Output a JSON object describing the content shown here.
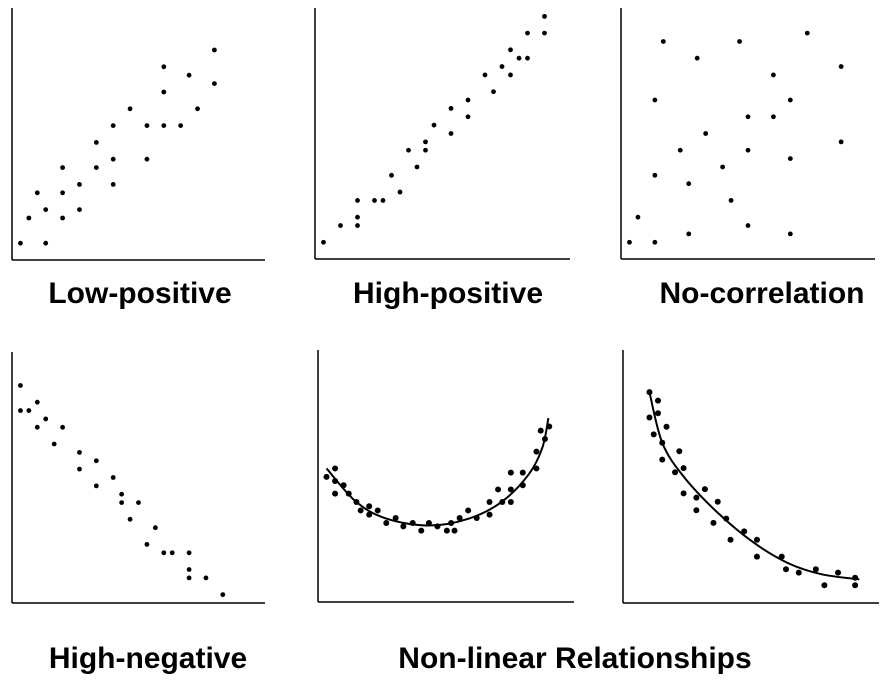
{
  "chart_data": [
    {
      "type": "scatter",
      "title": "Low-positive",
      "xlim": [
        0,
        30
      ],
      "ylim": [
        0,
        30
      ],
      "grid": false,
      "points": [
        [
          1,
          2
        ],
        [
          4,
          2
        ],
        [
          2,
          5
        ],
        [
          4,
          6
        ],
        [
          3,
          8
        ],
        [
          6,
          5
        ],
        [
          6,
          8
        ],
        [
          6,
          11
        ],
        [
          8,
          6
        ],
        [
          8,
          9
        ],
        [
          10,
          11
        ],
        [
          10,
          14
        ],
        [
          12,
          9
        ],
        [
          12,
          12
        ],
        [
          12,
          16
        ],
        [
          14,
          18
        ],
        [
          16,
          12
        ],
        [
          16,
          16
        ],
        [
          18,
          16
        ],
        [
          18,
          20
        ],
        [
          18,
          23
        ],
        [
          20,
          16
        ],
        [
          21,
          22
        ],
        [
          22,
          18
        ],
        [
          24,
          21
        ],
        [
          24,
          25
        ]
      ]
    },
    {
      "type": "scatter",
      "title": "High-positive",
      "xlim": [
        0,
        30
      ],
      "ylim": [
        0,
        30
      ],
      "grid": false,
      "points": [
        [
          1,
          2
        ],
        [
          3,
          4
        ],
        [
          5,
          4
        ],
        [
          5,
          5
        ],
        [
          5,
          7
        ],
        [
          7,
          7
        ],
        [
          8,
          7
        ],
        [
          10,
          8
        ],
        [
          9,
          10
        ],
        [
          11,
          13
        ],
        [
          12,
          11
        ],
        [
          13,
          13
        ],
        [
          13,
          14
        ],
        [
          14,
          16
        ],
        [
          16,
          15
        ],
        [
          16,
          18
        ],
        [
          18,
          17
        ],
        [
          18,
          19
        ],
        [
          20,
          22
        ],
        [
          21,
          20
        ],
        [
          22,
          23
        ],
        [
          23,
          22
        ],
        [
          23,
          25
        ],
        [
          24,
          24
        ],
        [
          25,
          24
        ],
        [
          25,
          27
        ],
        [
          27,
          27
        ],
        [
          27,
          29
        ]
      ]
    },
    {
      "type": "scatter",
      "title": "No-correlation",
      "xlim": [
        0,
        30
      ],
      "ylim": [
        0,
        30
      ],
      "grid": false,
      "points": [
        [
          1,
          2
        ],
        [
          4,
          2
        ],
        [
          2,
          5
        ],
        [
          8,
          3
        ],
        [
          15,
          4
        ],
        [
          20,
          3
        ],
        [
          13,
          7
        ],
        [
          8,
          9
        ],
        [
          4,
          10
        ],
        [
          12,
          11
        ],
        [
          7,
          13
        ],
        [
          15,
          13
        ],
        [
          20,
          12
        ],
        [
          26,
          14
        ],
        [
          10,
          15
        ],
        [
          15,
          17
        ],
        [
          18,
          17
        ],
        [
          4,
          19
        ],
        [
          20,
          19
        ],
        [
          18,
          22
        ],
        [
          26,
          23
        ],
        [
          9,
          24
        ],
        [
          5,
          26
        ],
        [
          14,
          26
        ],
        [
          22,
          27
        ]
      ]
    },
    {
      "type": "scatter",
      "title": "High-negative",
      "xlim": [
        0,
        30
      ],
      "ylim": [
        0,
        30
      ],
      "grid": false,
      "points": [
        [
          1,
          26
        ],
        [
          1,
          23
        ],
        [
          2,
          23
        ],
        [
          3,
          24
        ],
        [
          4,
          22
        ],
        [
          3,
          21
        ],
        [
          6,
          21
        ],
        [
          5,
          19
        ],
        [
          8,
          18
        ],
        [
          8,
          16
        ],
        [
          10,
          17
        ],
        [
          10,
          14
        ],
        [
          12,
          15
        ],
        [
          13,
          13
        ],
        [
          13,
          12
        ],
        [
          15,
          12
        ],
        [
          14,
          10
        ],
        [
          17,
          9
        ],
        [
          16,
          7
        ],
        [
          18,
          6
        ],
        [
          19,
          6
        ],
        [
          21,
          6
        ],
        [
          21,
          4
        ],
        [
          21,
          3
        ],
        [
          23,
          3
        ],
        [
          25,
          1
        ]
      ]
    },
    {
      "type": "scatter",
      "title": "",
      "xlim": [
        0,
        30
      ],
      "ylim": [
        0,
        30
      ],
      "grid": false,
      "points": [
        [
          1,
          14.9
        ],
        [
          2,
          15.9
        ],
        [
          2,
          14.4
        ],
        [
          2,
          12.9
        ],
        [
          3,
          13.9
        ],
        [
          3.6,
          12.9
        ],
        [
          4.5,
          11.9
        ],
        [
          5,
          10.9
        ],
        [
          6,
          11.4
        ],
        [
          6,
          10.4
        ],
        [
          7,
          10.9
        ],
        [
          8,
          9.4
        ],
        [
          9.1,
          10
        ],
        [
          10,
          9
        ],
        [
          11.1,
          9.4
        ],
        [
          12.1,
          8.5
        ],
        [
          13,
          9.4
        ],
        [
          14,
          9
        ],
        [
          15.1,
          8.5
        ],
        [
          15.6,
          9.4
        ],
        [
          16,
          8.5
        ],
        [
          16.6,
          10
        ],
        [
          17.6,
          10.9
        ],
        [
          18.6,
          10
        ],
        [
          20.1,
          11.9
        ],
        [
          20.1,
          10.4
        ],
        [
          21.1,
          13.4
        ],
        [
          21.6,
          11.9
        ],
        [
          22.6,
          15.4
        ],
        [
          22.6,
          13.4
        ],
        [
          22.6,
          11.9
        ],
        [
          24,
          15.4
        ],
        [
          24,
          13.9
        ],
        [
          25.6,
          15.9
        ],
        [
          25.6,
          17.9
        ],
        [
          26.6,
          19.4
        ],
        [
          26.1,
          20.4
        ],
        [
          27.1,
          20.9
        ]
      ],
      "fit_curve": [
        [
          1,
          15.9
        ],
        [
          4.5,
          11.9
        ],
        [
          8.1,
          9.9
        ],
        [
          13,
          9.1
        ],
        [
          17.6,
          9.9
        ],
        [
          21.5,
          11.9
        ],
        [
          24.7,
          15.2
        ],
        [
          26.3,
          18.4
        ],
        [
          27,
          21.9
        ]
      ]
    },
    {
      "type": "scatter",
      "title": "",
      "xlim": [
        0,
        30
      ],
      "ylim": [
        0,
        30
      ],
      "grid": false,
      "points": [
        [
          3.1,
          25
        ],
        [
          4.1,
          24
        ],
        [
          3.1,
          22
        ],
        [
          4.1,
          22.5
        ],
        [
          5.1,
          20.9
        ],
        [
          3.6,
          20
        ],
        [
          4.6,
          19
        ],
        [
          4.6,
          17
        ],
        [
          6.6,
          18
        ],
        [
          7.1,
          16
        ],
        [
          6.1,
          15.5
        ],
        [
          7.1,
          13
        ],
        [
          8.6,
          12.5
        ],
        [
          9.6,
          13.5
        ],
        [
          8.6,
          11
        ],
        [
          11.1,
          12
        ],
        [
          10.6,
          9.5
        ],
        [
          12.1,
          10
        ],
        [
          12.6,
          7.5
        ],
        [
          14.2,
          8.5
        ],
        [
          15.7,
          7.5
        ],
        [
          15.7,
          5.5
        ],
        [
          18.6,
          5.5
        ],
        [
          19.1,
          4
        ],
        [
          20.6,
          3.6
        ],
        [
          22.6,
          4
        ],
        [
          23.6,
          2.1
        ],
        [
          25.2,
          3.6
        ],
        [
          27.2,
          3
        ],
        [
          27.2,
          2.1
        ]
      ],
      "fit_curve": [
        [
          3.1,
          25
        ],
        [
          4.6,
          19
        ],
        [
          7.1,
          15
        ],
        [
          11.1,
          10.7
        ],
        [
          15.4,
          7.1
        ],
        [
          19.4,
          4.7
        ],
        [
          23.3,
          3.4
        ],
        [
          27.7,
          2.8
        ]
      ]
    }
  ],
  "captions": {
    "low_positive": "Low-positive",
    "high_positive": "High-positive",
    "no_correlation": "No-correlation",
    "high_negative": "High-negative",
    "non_linear": "Non-linear Relationships"
  }
}
